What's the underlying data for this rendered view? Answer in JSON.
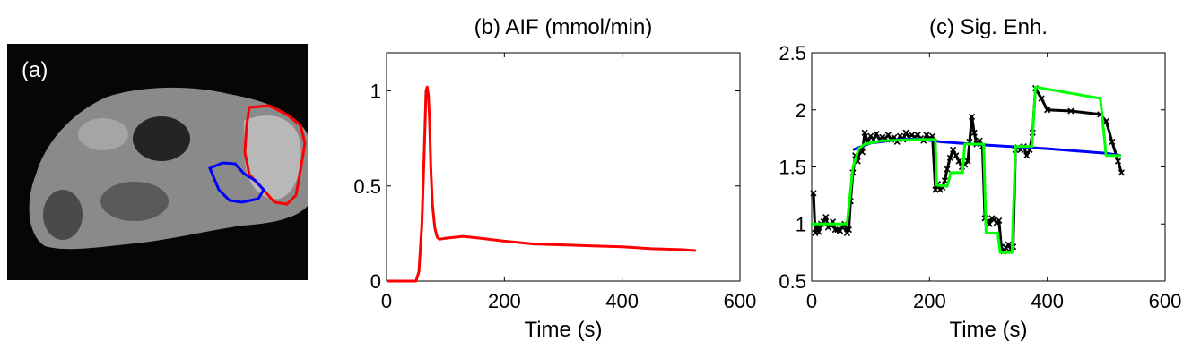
{
  "image_panel": {
    "label": "(a)",
    "roi_colors": {
      "red_roi": "#ff0000",
      "blue_roi": "#0000ff"
    }
  },
  "chart_data": [
    {
      "type": "line",
      "title": "(b) AIF (mmol/min)",
      "xlabel": "Time (s)",
      "ylabel": "",
      "xlim": [
        0,
        600
      ],
      "ylim": [
        0,
        1.2
      ],
      "xticks": [
        0,
        200,
        400,
        600
      ],
      "yticks": [
        0,
        0.5,
        1
      ],
      "xtick_labels": [
        "0",
        "200",
        "400",
        "600"
      ],
      "ytick_labels": [
        "0",
        "0.5",
        "1"
      ],
      "grid": false,
      "series": [
        {
          "color": "#ff0000",
          "x": [
            0,
            50,
            55,
            60,
            64,
            67,
            69,
            71,
            73,
            75,
            78,
            82,
            86,
            90,
            100,
            130,
            160,
            200,
            250,
            300,
            350,
            400,
            450,
            500,
            525
          ],
          "y": [
            0,
            0,
            0.05,
            0.3,
            0.68,
            1.0,
            1.02,
            0.98,
            0.85,
            0.6,
            0.4,
            0.28,
            0.23,
            0.22,
            0.225,
            0.235,
            0.225,
            0.21,
            0.195,
            0.19,
            0.185,
            0.18,
            0.17,
            0.165,
            0.16
          ]
        }
      ]
    },
    {
      "type": "line",
      "title": "(c) Sig. Enh.",
      "xlabel": "Time (s)",
      "ylabel": "",
      "xlim": [
        0,
        600
      ],
      "ylim": [
        0.5,
        2.5
      ],
      "xticks": [
        0,
        200,
        400,
        600
      ],
      "yticks": [
        0.5,
        1,
        1.5,
        2,
        2.5
      ],
      "xtick_labels": [
        "0",
        "200",
        "400",
        "600"
      ],
      "ytick_labels": [
        "0.5",
        "1",
        "1.5",
        "2",
        "2.5"
      ],
      "grid": false,
      "series": [
        {
          "color": "#000000",
          "marker": "x",
          "x": [
            3,
            6,
            9,
            12,
            16,
            20,
            24,
            28,
            32,
            36,
            40,
            44,
            48,
            52,
            56,
            60,
            63,
            66,
            70,
            74,
            78,
            82,
            86,
            90,
            95,
            100,
            105,
            110,
            115,
            120,
            125,
            130,
            135,
            140,
            145,
            150,
            155,
            160,
            165,
            170,
            175,
            180,
            185,
            190,
            195,
            200,
            205,
            210,
            214,
            218,
            222,
            226,
            230,
            235,
            240,
            245,
            250,
            255,
            260,
            265,
            268,
            272,
            276,
            280,
            285,
            290,
            294,
            298,
            302,
            306,
            310,
            314,
            318,
            322,
            326,
            330,
            334,
            338,
            342,
            346,
            350,
            355,
            360,
            365,
            370,
            375,
            380,
            390,
            400,
            440,
            490,
            500,
            510,
            520,
            526
          ],
          "y": [
            1.27,
            0.92,
            0.98,
            0.93,
            1.0,
            1.02,
            1.06,
            0.97,
            0.99,
            1.02,
            0.95,
            0.95,
            0.94,
            0.97,
            1.0,
            0.92,
            0.95,
            1.2,
            1.45,
            1.6,
            1.55,
            1.65,
            1.63,
            1.8,
            1.72,
            1.77,
            1.74,
            1.79,
            1.74,
            1.76,
            1.75,
            1.78,
            1.74,
            1.76,
            1.72,
            1.77,
            1.74,
            1.8,
            1.76,
            1.78,
            1.76,
            1.78,
            1.75,
            1.73,
            1.78,
            1.75,
            1.77,
            1.3,
            1.35,
            1.3,
            1.32,
            1.38,
            1.48,
            1.58,
            1.65,
            1.6,
            1.55,
            1.5,
            1.52,
            1.55,
            1.72,
            1.94,
            1.8,
            1.7,
            1.73,
            1.68,
            1.05,
            1.02,
            1.0,
            1.05,
            1.04,
            1.01,
            1.03,
            0.8,
            0.76,
            0.79,
            0.82,
            0.78,
            0.8,
            1.65,
            1.67,
            1.65,
            1.68,
            1.6,
            1.65,
            1.8,
            2.19,
            2.1,
            2.0,
            1.99,
            1.96,
            1.9,
            1.72,
            1.55,
            1.45
          ]
        },
        {
          "color": "#0000ff",
          "x": [
            70,
            100,
            150,
            180,
            220,
            300,
            400,
            500,
            525
          ],
          "y": [
            1.65,
            1.71,
            1.74,
            1.745,
            1.72,
            1.69,
            1.66,
            1.62,
            1.6
          ]
        },
        {
          "color": "#00ff00",
          "x": [
            0,
            60,
            70,
            80,
            90,
            120,
            180,
            210,
            212,
            230,
            236,
            256,
            260,
            276,
            292,
            296,
            316,
            320,
            340,
            346,
            374,
            380,
            490,
            500,
            525
          ],
          "y": [
            1.0,
            1.0,
            1.5,
            1.66,
            1.7,
            1.73,
            1.74,
            1.74,
            1.34,
            1.33,
            1.45,
            1.45,
            1.7,
            1.7,
            1.7,
            0.92,
            0.92,
            0.75,
            0.75,
            1.68,
            1.68,
            2.2,
            2.1,
            1.6,
            1.6
          ]
        }
      ]
    }
  ]
}
